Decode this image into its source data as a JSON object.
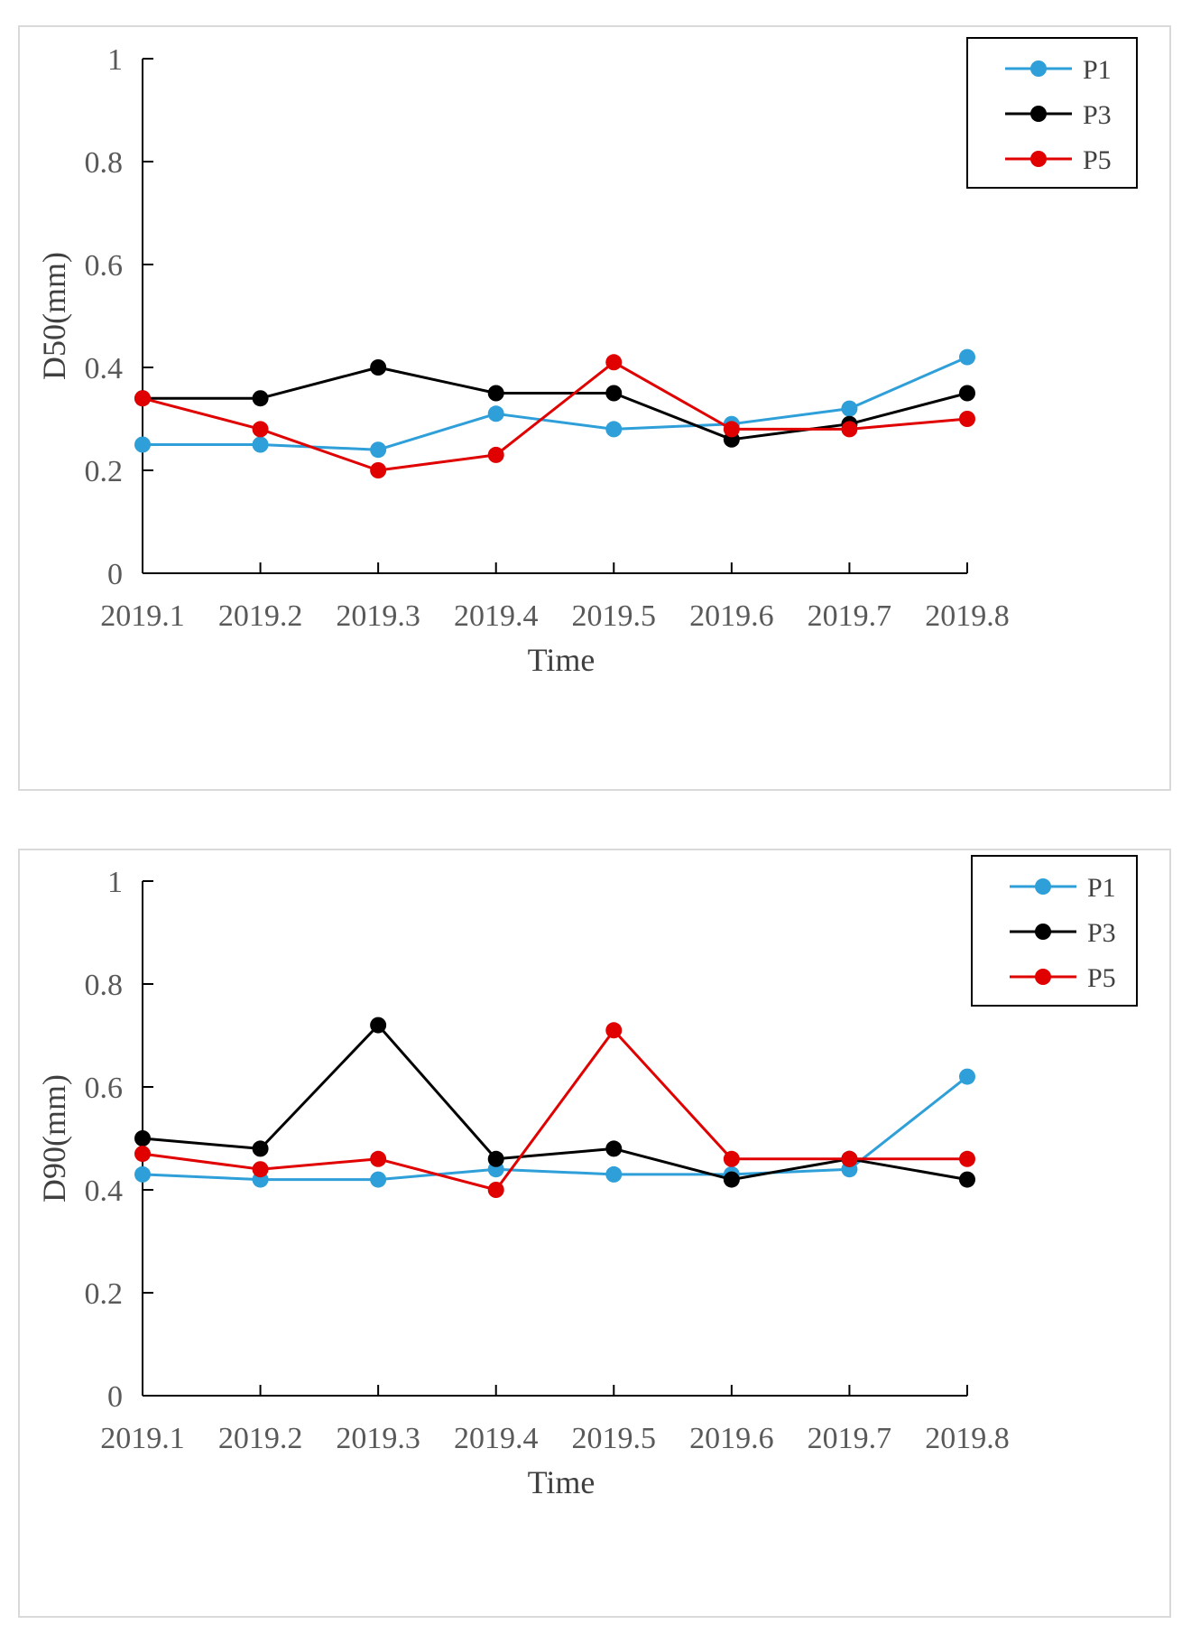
{
  "chart_data": [
    {
      "type": "line",
      "title": "",
      "xlabel": "Time",
      "ylabel": "D50(mm)",
      "ylim": [
        0,
        1
      ],
      "yticks": [
        "0",
        "0.2",
        "0.4",
        "0.6",
        "0.8",
        "1"
      ],
      "grid": false,
      "legend_position": "top-right",
      "categories": [
        "2019.1",
        "2019.2",
        "2019.3",
        "2019.4",
        "2019.5",
        "2019.6",
        "2019.7",
        "2019.8"
      ],
      "series": [
        {
          "name": "P1",
          "color": "#2e9fd8",
          "values": [
            0.25,
            0.25,
            0.24,
            0.31,
            0.28,
            0.29,
            0.32,
            0.42
          ]
        },
        {
          "name": "P3",
          "color": "#000000",
          "values": [
            0.34,
            0.34,
            0.4,
            0.35,
            0.35,
            0.26,
            0.29,
            0.35
          ]
        },
        {
          "name": "P5",
          "color": "#e00000",
          "values": [
            0.34,
            0.28,
            0.2,
            0.23,
            0.41,
            0.28,
            0.28,
            0.3
          ]
        }
      ]
    },
    {
      "type": "line",
      "title": "",
      "xlabel": "Time",
      "ylabel": "D90(mm)",
      "ylim": [
        0,
        1
      ],
      "yticks": [
        "0",
        "0.2",
        "0.4",
        "0.6",
        "0.8",
        "1"
      ],
      "grid": false,
      "legend_position": "top-right",
      "categories": [
        "2019.1",
        "2019.2",
        "2019.3",
        "2019.4",
        "2019.5",
        "2019.6",
        "2019.7",
        "2019.8"
      ],
      "series": [
        {
          "name": "P1",
          "color": "#2e9fd8",
          "values": [
            0.43,
            0.42,
            0.42,
            0.44,
            0.43,
            0.43,
            0.44,
            0.62
          ]
        },
        {
          "name": "P3",
          "color": "#000000",
          "values": [
            0.5,
            0.48,
            0.72,
            0.46,
            0.48,
            0.42,
            0.46,
            0.42
          ]
        },
        {
          "name": "P5",
          "color": "#e00000",
          "values": [
            0.47,
            0.44,
            0.46,
            0.4,
            0.71,
            0.46,
            0.46,
            0.46
          ]
        }
      ]
    }
  ]
}
